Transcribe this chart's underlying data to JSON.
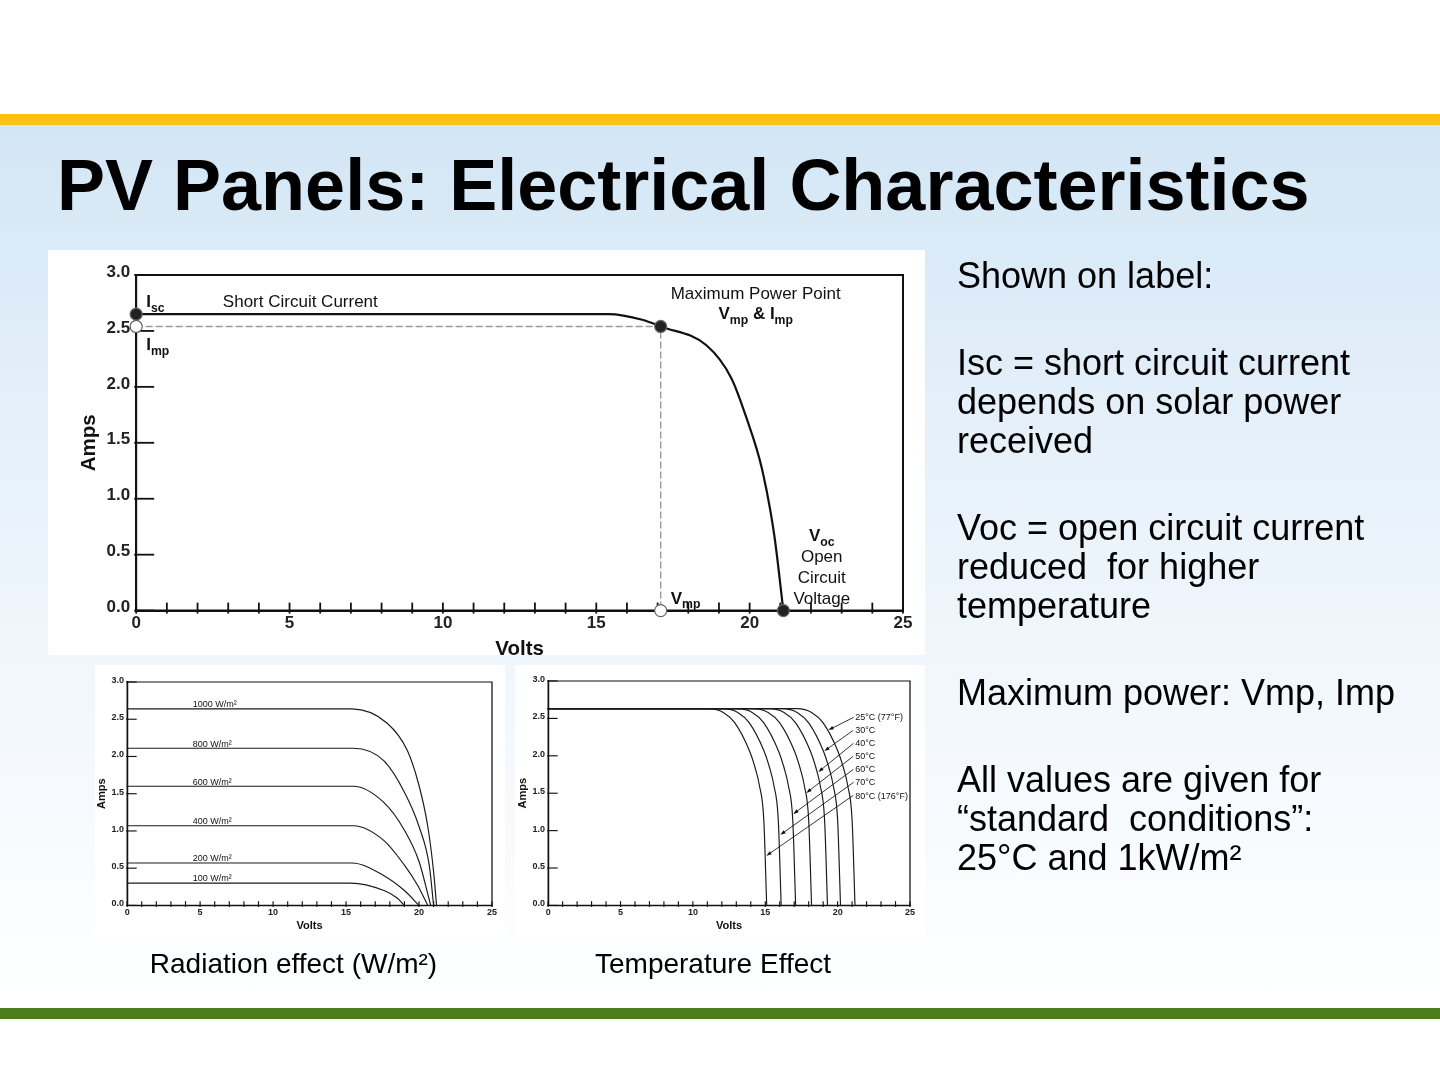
{
  "chart_data": [
    {
      "type": "line",
      "title": "PV Panels: Electrical Characteristics",
      "xlabel": "Volts",
      "ylabel": "Amps",
      "xlim": [
        0,
        25
      ],
      "xticks": [
        0,
        {
          "value": 1,
          "label": null
        },
        {
          "value": 2,
          "label": null
        },
        {
          "value": 3,
          "label": null
        },
        {
          "value": 4,
          "label": null
        },
        5,
        {
          "value": 6,
          "label": null
        },
        {
          "value": 7,
          "label": null
        },
        {
          "value": 8,
          "label": null
        },
        {
          "value": 9,
          "label": null
        },
        10,
        {
          "value": 11,
          "label": null
        },
        {
          "value": 12,
          "label": null
        },
        {
          "value": 13,
          "label": null
        },
        {
          "value": 14,
          "label": null
        },
        15,
        {
          "value": 16,
          "label": null
        },
        {
          "value": 17,
          "label": null
        },
        {
          "value": 18,
          "label": null
        },
        {
          "value": 19,
          "label": null
        },
        20,
        {
          "value": 21,
          "label": null
        },
        {
          "value": 22,
          "label": null
        },
        {
          "value": 23,
          "label": null
        },
        {
          "value": 24,
          "label": null
        },
        25
      ],
      "ylim": [
        0,
        3
      ],
      "yticks": [
        {
          "value": 0,
          "label": "0.0"
        },
        0.5,
        {
          "value": 1,
          "label": "1.0"
        },
        1.5,
        {
          "value": 2,
          "label": "2.0"
        },
        2.5,
        {
          "value": 3,
          "label": "3.0"
        }
      ],
      "series": [
        {
          "color": "#111111",
          "marker": "none",
          "x": [
            0,
            15.4,
            16.5,
            17.1,
            18.6,
            19.4,
            19.9,
            20.4,
            20.8,
            21.1
          ],
          "values": [
            2.65,
            2.65,
            2.6,
            2.54,
            2.37,
            2.08,
            1.72,
            1.27,
            0.68,
            0
          ]
        },
        {
          "color": "#9a9a9a",
          "marker": "none",
          "line_style": "dashed",
          "x": [
            0,
            17.1,
            17.1
          ],
          "values": [
            2.54,
            2.54,
            0
          ]
        },
        {
          "type": "scatter",
          "color": "#222222",
          "marker": "circle",
          "x": [
            0,
            17.1,
            21.1
          ],
          "values": [
            2.65,
            2.54,
            0
          ]
        },
        {
          "type": "scatter",
          "color": "#ffffff",
          "marker": "circle",
          "x": [
            0,
            17.1
          ],
          "values": [
            2.54,
            0
          ]
        }
      ],
      "annotations": [
        {
          "text": "I$_{sc}$",
          "x": 0,
          "y": 2.65
        },
        {
          "text": "Short Circuit Current",
          "x": 2.5,
          "y": 2.65
        },
        {
          "text": "I$_{mp}$",
          "x": 0,
          "y": 2.54
        },
        {
          "text": "Maximum Power Point\nV$_{mp}$ & I$_{mp}$",
          "x": 17.1,
          "y": 2.54
        },
        {
          "text": "V$_{mp}$",
          "x": 17.1,
          "y": 0
        },
        {
          "text": "V$_{oc}$\nOpen\nCircuit\nVoltage",
          "x": 21.1,
          "y": 0
        }
      ]
    },
    {
      "type": "line",
      "title": "Radiation effect (W/m²)",
      "xlabel": "Volts",
      "ylabel": "Amps",
      "xlim": [
        0,
        25
      ],
      "xticks": [
        0,
        {
          "value": 1,
          "label": null
        },
        {
          "value": 2,
          "label": null
        },
        {
          "value": 3,
          "label": null
        },
        {
          "value": 4,
          "label": null
        },
        5,
        {
          "value": 6,
          "label": null
        },
        {
          "value": 7,
          "label": null
        },
        {
          "value": 8,
          "label": null
        },
        {
          "value": 9,
          "label": null
        },
        10,
        {
          "value": 11,
          "label": null
        },
        {
          "value": 12,
          "label": null
        },
        {
          "value": 13,
          "label": null
        },
        {
          "value": 14,
          "label": null
        },
        15,
        {
          "value": 16,
          "label": null
        },
        {
          "value": 17,
          "label": null
        },
        {
          "value": 18,
          "label": null
        },
        {
          "value": 19,
          "label": null
        },
        20,
        {
          "value": 21,
          "label": null
        },
        {
          "value": 22,
          "label": null
        },
        {
          "value": 23,
          "label": null
        },
        {
          "value": 24,
          "label": null
        },
        25
      ],
      "ylim": [
        0,
        3
      ],
      "yticks": [
        {
          "value": 0,
          "label": "0.0"
        },
        0.5,
        {
          "value": 1,
          "label": "1.0"
        },
        1.5,
        {
          "value": 2,
          "label": "2.0"
        },
        2.5,
        {
          "value": 3,
          "label": "3.0"
        }
      ],
      "series": [
        {
          "name": "1000 W/m²",
          "color": "#1a1a1a",
          "x": [
            0,
            15.4,
            17.8,
            19.2,
            20.0,
            20.6,
            21.0,
            21.2
          ],
          "values": [
            2.64,
            2.64,
            2.45,
            2.08,
            1.61,
            1.06,
            0.45,
            0
          ]
        },
        {
          "name": "800 W/m²",
          "color": "#1a1a1a",
          "x": [
            0,
            15.5,
            17.6,
            19.0,
            20.0,
            20.7,
            21.0
          ],
          "values": [
            2.11,
            2.11,
            1.94,
            1.52,
            1.06,
            0.54,
            0
          ]
        },
        {
          "name": "600 W/m²",
          "color": "#1a1a1a",
          "x": [
            0,
            15.5,
            17.6,
            19.0,
            20.0,
            20.8
          ],
          "values": [
            1.6,
            1.6,
            1.38,
            1.01,
            0.59,
            0
          ]
        },
        {
          "name": "400 W/m²",
          "color": "#1a1a1a",
          "x": [
            0,
            15.5,
            17.6,
            19.0,
            19.9,
            20.6
          ],
          "values": [
            1.07,
            1.07,
            0.87,
            0.54,
            0.27,
            0
          ]
        },
        {
          "name": "200 W/m²",
          "color": "#1a1a1a",
          "x": [
            0,
            15.4,
            17.6,
            19.0,
            20.0
          ],
          "values": [
            0.57,
            0.57,
            0.4,
            0.2,
            0
          ]
        },
        {
          "name": "100 W/m²",
          "color": "#1a1a1a",
          "x": [
            0,
            15.3,
            17.6,
            18.5,
            19.0
          ],
          "values": [
            0.3,
            0.3,
            0.2,
            0.1,
            0
          ]
        }
      ]
    },
    {
      "type": "line",
      "title": "Temperature Effect",
      "xlabel": "Volts",
      "ylabel": "Amps",
      "legend": "top right",
      "xlim": [
        0,
        25
      ],
      "xticks": [
        0,
        {
          "value": 1,
          "label": null
        },
        {
          "value": 2,
          "label": null
        },
        {
          "value": 3,
          "label": null
        },
        {
          "value": 4,
          "label": null
        },
        5,
        {
          "value": 6,
          "label": null
        },
        {
          "value": 7,
          "label": null
        },
        {
          "value": 8,
          "label": null
        },
        {
          "value": 9,
          "label": null
        },
        10,
        {
          "value": 11,
          "label": null
        },
        {
          "value": 12,
          "label": null
        },
        {
          "value": 13,
          "label": null
        },
        {
          "value": 14,
          "label": null
        },
        15,
        {
          "value": 16,
          "label": null
        },
        {
          "value": 17,
          "label": null
        },
        {
          "value": 18,
          "label": null
        },
        {
          "value": 19,
          "label": null
        },
        20,
        {
          "value": 21,
          "label": null
        },
        {
          "value": 22,
          "label": null
        },
        {
          "value": 23,
          "label": null
        },
        {
          "value": 24,
          "label": null
        },
        25
      ],
      "ylim": [
        0,
        3
      ],
      "yticks": [
        {
          "value": 0,
          "label": "0.0"
        },
        0.5,
        {
          "value": 1,
          "label": "1.0"
        },
        1.5,
        {
          "value": 2,
          "label": "2.0"
        },
        2.5,
        {
          "value": 3,
          "label": "3.0"
        }
      ],
      "series": [
        {
          "name": "25°C (77°F)",
          "color": "#1a1a1a",
          "x": [
            0,
            17.2,
            18.2,
            19.0,
            20.0,
            20.4,
            20.7,
            21.0,
            21.2
          ],
          "values": [
            2.63,
            2.63,
            2.58,
            2.44,
            2.07,
            1.84,
            1.6,
            1.14,
            0
          ]
        },
        {
          "name": "30°C",
          "color": "#1a1a1a",
          "x": [
            0,
            16.2,
            17.2,
            18.0,
            19.0,
            19.4,
            19.7,
            20.0,
            20.2
          ],
          "values": [
            2.63,
            2.63,
            2.58,
            2.44,
            2.07,
            1.84,
            1.6,
            1.14,
            0
          ]
        },
        {
          "name": "40°C",
          "color": "#1a1a1a",
          "x": [
            0,
            15.3,
            16.3,
            17.1,
            18.1,
            18.5,
            18.8,
            19.1,
            19.3
          ],
          "values": [
            2.63,
            2.63,
            2.58,
            2.44,
            2.07,
            1.84,
            1.6,
            1.14,
            0
          ]
        },
        {
          "name": "50°C",
          "color": "#1a1a1a",
          "x": [
            0,
            14.2,
            15.2,
            16.0,
            17.0,
            17.4,
            17.7,
            18.0,
            18.2
          ],
          "values": [
            2.63,
            2.63,
            2.58,
            2.44,
            2.07,
            1.84,
            1.6,
            1.14,
            0
          ]
        },
        {
          "name": "60°C",
          "color": "#1a1a1a",
          "x": [
            0,
            13.1,
            14.1,
            14.9,
            15.9,
            16.3,
            16.6,
            16.9,
            17.1
          ],
          "values": [
            2.63,
            2.63,
            2.58,
            2.44,
            2.07,
            1.84,
            1.6,
            1.14,
            0
          ]
        },
        {
          "name": "70°C",
          "color": "#1a1a1a",
          "x": [
            0,
            12.1,
            13.1,
            13.9,
            14.9,
            15.3,
            15.6,
            15.9,
            16.1
          ],
          "values": [
            2.63,
            2.63,
            2.58,
            2.44,
            2.07,
            1.84,
            1.6,
            1.14,
            0
          ]
        },
        {
          "name": "80°C (176°F)",
          "color": "#1a1a1a",
          "x": [
            0,
            11.1,
            12.1,
            12.9,
            13.9,
            14.3,
            14.6,
            14.9,
            15.1
          ],
          "values": [
            2.63,
            2.63,
            2.58,
            2.44,
            2.07,
            1.84,
            1.6,
            1.14,
            0
          ]
        }
      ]
    },
    {
      "type": "other",
      "title": "Shown on label:",
      "annotations": [
        "Isc = short circuit current depends on solar power received",
        "Voc = open circuit current reduced  for higher temperature",
        "Maximum power: Vmp, Imp",
        "All values are given for “standard  conditions”:\n25°C and 1kW/m²"
      ]
    }
  ]
}
